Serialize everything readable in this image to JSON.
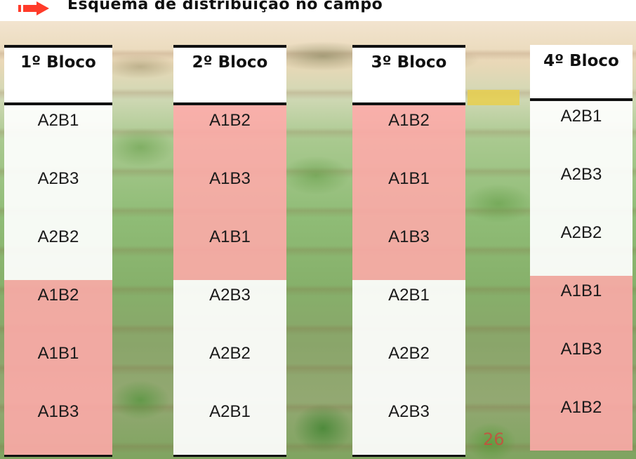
{
  "title": "Esquema de distribuição no campo",
  "colors": {
    "arrow": "#ff3b2a",
    "A1_cell": "#ffaaaa",
    "A2_cell": "#ffffff",
    "rule": "#111111"
  },
  "blocks": [
    {
      "label": "1º Bloco",
      "cells": [
        "A2B1",
        "A2B3",
        "A2B2",
        "A1B2",
        "A1B1",
        "A1B3"
      ]
    },
    {
      "label": "2º Bloco",
      "cells": [
        "A1B2",
        "A1B3",
        "A1B1",
        "A2B3",
        "A2B2",
        "A2B1"
      ]
    },
    {
      "label": "3º Bloco",
      "cells": [
        "A1B2",
        "A1B1",
        "A1B3",
        "A2B1",
        "A2B2",
        "A2B3"
      ]
    },
    {
      "label": "4º Bloco",
      "cells": [
        "A2B1",
        "A2B3",
        "A2B2",
        "A1B1",
        "A1B3",
        "A1B2"
      ]
    }
  ],
  "photo_date_stamp": "26"
}
